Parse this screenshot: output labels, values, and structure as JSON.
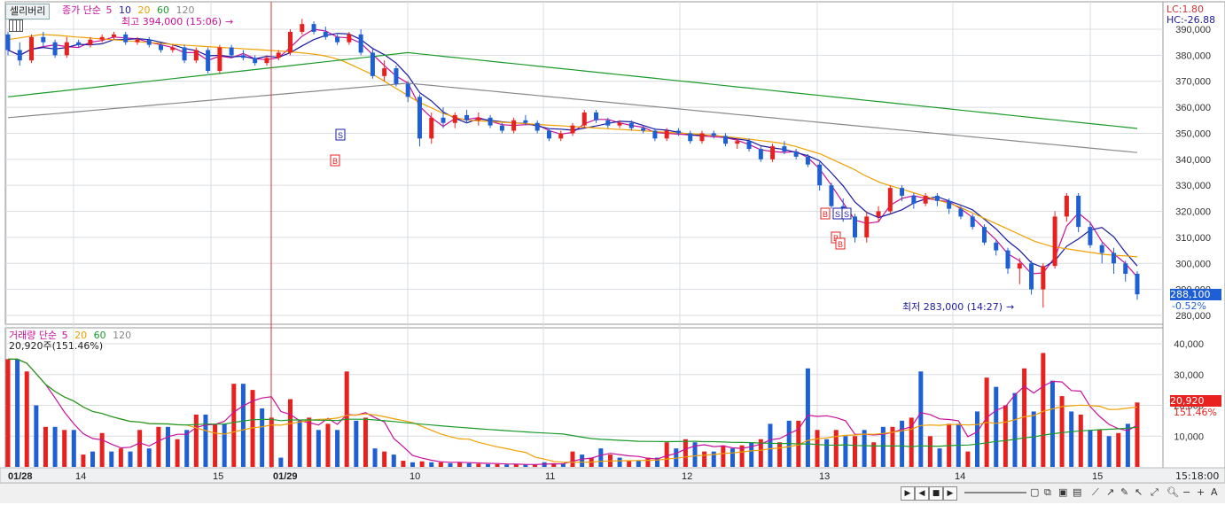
{
  "toolbar": {
    "sell_button": "셀리버리"
  },
  "price_panel": {
    "legend": {
      "prefix": "종가 단순",
      "p5": "5",
      "p10": "10",
      "p20": "20",
      "p60": "60",
      "p120": "120"
    },
    "lc_label": "LC:1.80",
    "hc_label": "HC:-26.88",
    "high_annotation": "최고 394,000 (15:06)",
    "low_annotation": "최저 283,000 (14:27)",
    "current_price": "288,100",
    "current_change": "-0.52%"
  },
  "volume_panel": {
    "legend": {
      "prefix": "거래량 단순",
      "p5": "5",
      "p20": "20",
      "p60": "60",
      "p120": "120"
    },
    "current_volume": "20,920주(151.46%)",
    "current_value_tag": "20,920",
    "current_pct_tag": "151.46%"
  },
  "x_axis_labels": [
    "01/28",
    "14",
    "15",
    "01/29",
    "10",
    "11",
    "12",
    "13",
    "14",
    "15"
  ],
  "time_label": "15:18:00",
  "colors": {
    "up": "#e8211f",
    "down": "#1f5fd6",
    "ma5": "#c8109a",
    "ma10": "#1a1aa0",
    "ma20": "#f0a000",
    "ma60": "#1a9a2a",
    "ma120": "#888888"
  },
  "chart_data": [
    {
      "type": "candlestick",
      "title": "종가 단순 5 10 20 60 120",
      "ylim": [
        275000,
        395000
      ],
      "y_ticks": [
        "390,000",
        "380,000",
        "370,000",
        "360,000",
        "350,000",
        "340,000",
        "330,000",
        "320,000",
        "310,000",
        "300,000",
        "290,000",
        "280,000"
      ],
      "x_labels": [
        "01/28",
        "14",
        "15",
        "01/29",
        "10",
        "11",
        "12",
        "13",
        "14",
        "15"
      ],
      "y_tick_values": [
        390000,
        380000,
        370000,
        360000,
        350000,
        340000,
        330000,
        320000,
        310000,
        300000,
        290000,
        280000
      ],
      "series": [
        {
          "name": "5",
          "values": []
        },
        {
          "name": "10",
          "values": []
        },
        {
          "name": "20",
          "values": [
            386000,
            386500,
            387000,
            387500,
            388000,
            387800,
            387600,
            387300,
            387000,
            386800,
            386500,
            386300,
            386000,
            385800,
            385500,
            385300,
            385000,
            384800,
            384500,
            384200,
            384000,
            383800,
            383600,
            383400,
            383200,
            383000,
            382800,
            382600,
            382400,
            382200,
            382000,
            381800,
            381600,
            381300,
            381000,
            380700,
            380300,
            379800,
            379000,
            378000,
            376500,
            375000,
            373500,
            372000,
            370000,
            368000,
            366000,
            364000,
            362000,
            360500,
            359000,
            357500,
            356500,
            355500,
            355000,
            354800,
            354600,
            354400,
            354200,
            354000,
            353800,
            353600,
            353400,
            353200,
            353000,
            352800,
            352600,
            352400,
            352200,
            352000,
            351800,
            351600,
            351400,
            351200,
            351000,
            350800,
            350600,
            350400,
            350200,
            350000,
            349800,
            349600,
            349300,
            349000,
            348700,
            348400,
            348000,
            347600,
            347200,
            346800,
            346400,
            345800,
            345000,
            344000,
            343000,
            342000,
            340500,
            339000,
            337500,
            336000,
            334000,
            332500,
            331000,
            330000,
            329000,
            328000,
            327000,
            326000,
            325000,
            324000,
            323000,
            322000,
            320500,
            319000,
            317500,
            316000,
            314500,
            313000,
            311500,
            310000,
            308500,
            307500,
            306500,
            306000,
            305500,
            305000,
            304500,
            304000,
            303500,
            303200,
            303000,
            302800,
            302500
          ]
        },
        {
          "name": "60",
          "values": []
        },
        {
          "name": "120",
          "values": []
        }
      ],
      "candles_ohlc": [
        [
          388000,
          389000,
          380000,
          382000
        ],
        [
          382000,
          385000,
          376000,
          378000
        ],
        [
          378000,
          388000,
          377000,
          387000
        ],
        [
          387000,
          389000,
          383000,
          385000
        ],
        [
          385000,
          386000,
          379000,
          380000
        ],
        [
          380000,
          387000,
          379000,
          385000
        ],
        [
          385000,
          386000,
          383000,
          384000
        ],
        [
          384000,
          387000,
          383000,
          386000
        ],
        [
          386000,
          388000,
          385000,
          387000
        ],
        [
          387000,
          389000,
          386000,
          388000
        ],
        [
          388000,
          389000,
          384000,
          385000
        ],
        [
          385000,
          387000,
          384000,
          386000
        ],
        [
          386000,
          387000,
          383000,
          384000
        ],
        [
          384000,
          385000,
          381000,
          382000
        ],
        [
          382000,
          384000,
          381000,
          383000
        ],
        [
          383000,
          384000,
          377000,
          378000
        ],
        [
          378000,
          383000,
          377000,
          382000
        ],
        [
          382000,
          383000,
          373000,
          374000
        ],
        [
          374000,
          384000,
          373000,
          383000
        ],
        [
          383000,
          384000,
          379000,
          380000
        ],
        [
          380000,
          382000,
          378000,
          379000
        ],
        [
          379000,
          380000,
          376000,
          377000
        ],
        [
          377000,
          380000,
          376000,
          379000
        ],
        [
          379000,
          382000,
          378000,
          381000
        ],
        [
          381000,
          390000,
          380000,
          389000
        ],
        [
          389000,
          394000,
          388000,
          392000
        ],
        [
          392000,
          393000,
          388000,
          389000
        ],
        [
          389000,
          391000,
          386000,
          387000
        ],
        [
          387000,
          388000,
          384000,
          385000
        ],
        [
          385000,
          389000,
          384000,
          388000
        ],
        [
          388000,
          390000,
          380000,
          381000
        ],
        [
          381000,
          383000,
          371000,
          372000
        ],
        [
          372000,
          378000,
          370000,
          375000
        ],
        [
          375000,
          376000,
          368000,
          369000
        ],
        [
          369000,
          370000,
          362000,
          364000
        ],
        [
          364000,
          365000,
          345000,
          348000
        ],
        [
          348000,
          358000,
          346000,
          356000
        ],
        [
          356000,
          360000,
          352000,
          354000
        ],
        [
          354000,
          358000,
          352000,
          357000
        ],
        [
          357000,
          359000,
          354000,
          355000
        ],
        [
          355000,
          358000,
          353000,
          356000
        ],
        [
          356000,
          357000,
          352000,
          353000
        ],
        [
          353000,
          354000,
          350000,
          351000
        ],
        [
          351000,
          356000,
          350000,
          355000
        ],
        [
          355000,
          357000,
          353000,
          354000
        ],
        [
          354000,
          355000,
          350000,
          351000
        ],
        [
          351000,
          352000,
          347000,
          348000
        ],
        [
          348000,
          351000,
          347000,
          350000
        ],
        [
          350000,
          354000,
          349000,
          353000
        ],
        [
          353000,
          359000,
          352000,
          358000
        ],
        [
          358000,
          359000,
          354000,
          355000
        ],
        [
          355000,
          356000,
          352000,
          353000
        ],
        [
          353000,
          355000,
          352000,
          354000
        ],
        [
          354000,
          355000,
          351000,
          352000
        ],
        [
          352000,
          353000,
          350000,
          351000
        ],
        [
          351000,
          352000,
          347000,
          348000
        ],
        [
          348000,
          352000,
          347000,
          351000
        ],
        [
          351000,
          352000,
          349000,
          350000
        ],
        [
          350000,
          351000,
          346000,
          347000
        ],
        [
          347000,
          351000,
          346000,
          350000
        ],
        [
          350000,
          351000,
          348000,
          349000
        ],
        [
          349000,
          350000,
          345000,
          346000
        ],
        [
          346000,
          348000,
          344000,
          347000
        ],
        [
          347000,
          348000,
          343000,
          344000
        ],
        [
          344000,
          345000,
          339000,
          340000
        ],
        [
          340000,
          346000,
          339000,
          345000
        ],
        [
          345000,
          347000,
          342000,
          343000
        ],
        [
          343000,
          344000,
          340000,
          341000
        ],
        [
          341000,
          342000,
          337000,
          338000
        ],
        [
          338000,
          339000,
          328000,
          330000
        ],
        [
          330000,
          331000,
          321000,
          322000
        ],
        [
          322000,
          325000,
          316000,
          318000
        ],
        [
          318000,
          319000,
          308000,
          310000
        ],
        [
          310000,
          320000,
          308000,
          318000
        ],
        [
          318000,
          322000,
          316000,
          320000
        ],
        [
          320000,
          330000,
          319000,
          329000
        ],
        [
          329000,
          330000,
          324000,
          326000
        ],
        [
          326000,
          327000,
          321000,
          323000
        ],
        [
          323000,
          327000,
          322000,
          326000
        ],
        [
          326000,
          327000,
          322000,
          324000
        ],
        [
          324000,
          325000,
          319000,
          321000
        ],
        [
          321000,
          322000,
          317000,
          318000
        ],
        [
          318000,
          319000,
          313000,
          314000
        ],
        [
          314000,
          315000,
          307000,
          308000
        ],
        [
          308000,
          309000,
          303000,
          305000
        ],
        [
          305000,
          306000,
          296000,
          298000
        ],
        [
          298000,
          302000,
          292000,
          300000
        ],
        [
          300000,
          301000,
          288000,
          290000
        ],
        [
          290000,
          300000,
          283000,
          299000
        ],
        [
          299000,
          320000,
          298000,
          318000
        ],
        [
          318000,
          327000,
          316000,
          326000
        ],
        [
          326000,
          327000,
          312000,
          314000
        ],
        [
          314000,
          316000,
          306000,
          307000
        ],
        [
          307000,
          308000,
          300000,
          304000
        ],
        [
          304000,
          306000,
          296000,
          300000
        ],
        [
          300000,
          301000,
          293000,
          296000
        ],
        [
          296000,
          297000,
          286000,
          288100
        ]
      ]
    },
    {
      "type": "bar",
      "title": "거래량 단순 5 20 60 120",
      "ylim": [
        0,
        45000
      ],
      "y_ticks": [
        "40,000",
        "30,000",
        "20,000",
        "10,000"
      ],
      "y_tick_values": [
        40000,
        30000,
        20000,
        10000
      ],
      "x_labels": [
        "01/28",
        "14",
        "15",
        "01/29",
        "10",
        "11",
        "12",
        "13",
        "14",
        "15"
      ],
      "values": [
        35000,
        35000,
        31000,
        20000,
        13000,
        13000,
        12000,
        12000,
        4000,
        5000,
        11000,
        5000,
        6000,
        5000,
        12000,
        6000,
        13000,
        13000,
        9000,
        12000,
        17000,
        17000,
        14000,
        14000,
        27000,
        27000,
        25000,
        19000,
        16000,
        3000,
        22000,
        15000,
        16000,
        12000,
        14000,
        12000,
        31000,
        15000,
        16000,
        6000,
        5000,
        4000,
        2000,
        1500,
        1800,
        1500,
        1500,
        1200,
        1500,
        1200,
        1000,
        900,
        900,
        800,
        800,
        700,
        700,
        1500,
        1200,
        1000,
        5000,
        4000,
        3000,
        6000,
        4000,
        3000,
        2000,
        2000,
        3000,
        3000,
        8000,
        6000,
        9000,
        8000,
        5000,
        5000,
        7000,
        6000,
        7000,
        8000,
        9000,
        14000,
        8000,
        15000,
        15000,
        32000,
        12000,
        9000,
        12000,
        10000,
        10000,
        12000,
        8000,
        13000,
        13000,
        15000,
        16000,
        31000,
        10000,
        6000,
        14000,
        14000,
        5000,
        18000,
        29000,
        26000,
        20000,
        24000,
        32000,
        18000,
        37000,
        28000,
        23000,
        18000,
        17000,
        12000,
        12000,
        10000,
        11000,
        14000,
        20920
      ],
      "bar_directions": "rbrbrbrbrbrbrbrbrbrbrbrbrbrbrbrbrbrbrbrbrbrbrbrbrbrbrbrbrbrbrbrbrbrbrbrbrbrbrbrbrbrbrbrbrbrbrbrbrbrbrbrbrbrbrbrbrbrbrbrb"
    }
  ]
}
